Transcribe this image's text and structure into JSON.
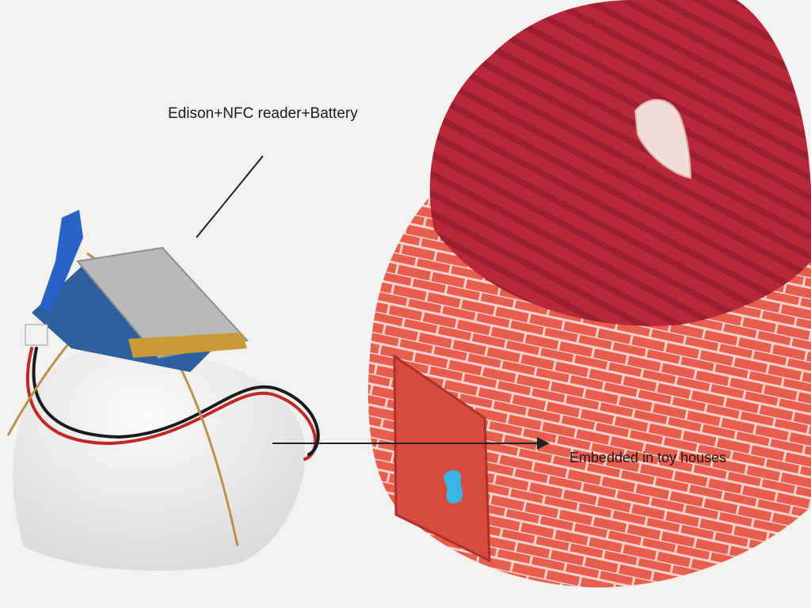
{
  "annotations": {
    "hardware_label": "Edison+NFC reader+Battery",
    "toy_label": "Embedded in toy houses"
  },
  "colors": {
    "background": "#f3f2f0",
    "foam_dome": "#eeeceb",
    "battery": "#b9b9b9",
    "battery_tape": "#c89a34",
    "board": "#2e5f9e",
    "blue_clip": "#2a63c8",
    "roof": "#b8283a",
    "brick_wall": "#e85e4e",
    "mortar": "#f4d3cc",
    "door": "#d94a3e",
    "door_patch": "#3ab5e6",
    "annotation_line": "#222222"
  }
}
